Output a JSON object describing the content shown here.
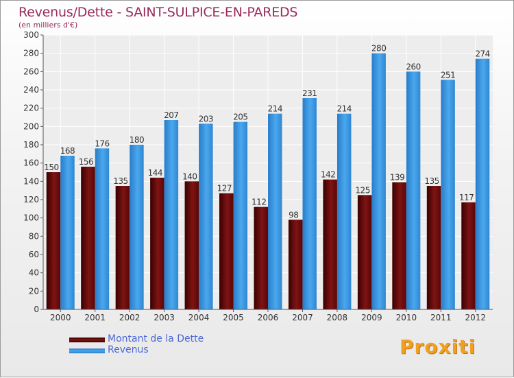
{
  "header": {
    "title": "Revenus/Dette - SAINT-SULPICE-EN-PAREDS",
    "subtitle": "(en milliers d'€)"
  },
  "legend": {
    "items": [
      {
        "label": "Montant de la Dette",
        "color": "#6b0a0a"
      },
      {
        "label": "Revenus",
        "color": "#3a9ae0"
      }
    ]
  },
  "logo": {
    "text": "Proxiti"
  },
  "chart_data": {
    "type": "bar",
    "title": "Revenus/Dette - SAINT-SULPICE-EN-PAREDS",
    "subtitle": "(en milliers d'€)",
    "xlabel": "",
    "ylabel": "",
    "ylim": [
      0,
      300
    ],
    "ytick_step": 20,
    "grid": true,
    "legend_position": "bottom-left",
    "categories": [
      "2000",
      "2001",
      "2002",
      "2003",
      "2004",
      "2005",
      "2006",
      "2007",
      "2008",
      "2009",
      "2010",
      "2011",
      "2012"
    ],
    "series": [
      {
        "name": "Montant de la Dette",
        "color": "#6b0a0a",
        "values": [
          150,
          156,
          135,
          144,
          140,
          127,
          112,
          98,
          142,
          125,
          139,
          135,
          117
        ]
      },
      {
        "name": "Revenus",
        "color": "#3a9ae0",
        "values": [
          168,
          176,
          180,
          207,
          203,
          205,
          214,
          231,
          214,
          280,
          260,
          251,
          274
        ]
      }
    ]
  }
}
